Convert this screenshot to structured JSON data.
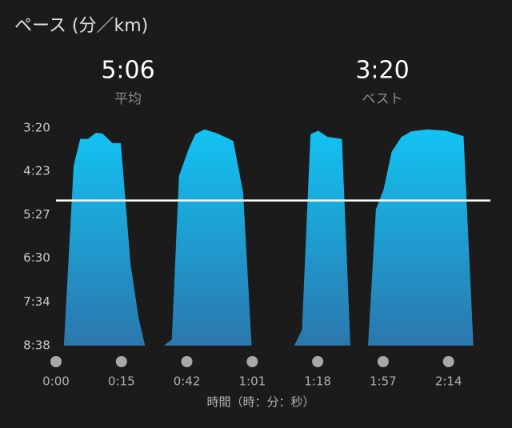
{
  "chart_data": {
    "type": "area",
    "title": "ペース (分／km)",
    "average": {
      "value": 306,
      "label": "5:06",
      "caption": "平均"
    },
    "best": {
      "label": "3:20",
      "caption": "ベスト"
    },
    "x_label": "時間（時：分：秒）",
    "x": [
      0.12,
      0.27,
      0.37,
      0.49,
      0.61,
      0.71,
      0.86,
      0.99,
      1.14,
      1.26,
      1.36,
      null,
      1.65,
      1.77,
      1.88,
      2.03,
      2.13,
      2.27,
      2.47,
      2.71,
      2.86,
      2.99,
      null,
      3.64,
      3.76,
      3.89,
      4.01,
      4.15,
      4.37,
      4.5,
      null,
      4.77,
      4.89,
      5.01,
      5.13,
      5.28,
      5.43,
      5.67,
      5.96,
      6.23,
      6.38
    ],
    "series": [
      {
        "color": "#12c3f3",
        "values": [
          518,
          255,
          216,
          216,
          207,
          208,
          222,
          222,
          399,
          476,
          518,
          null,
          518,
          509,
          270,
          230,
          209,
          202,
          208,
          219,
          294,
          518,
          null,
          518,
          495,
          209,
          204,
          213,
          216,
          518,
          null,
          518,
          319,
          289,
          235,
          213,
          205,
          202,
          204,
          212,
          518
        ]
      }
    ],
    "xlim": [
      0,
      6.64
    ],
    "xticks": [
      {
        "value": 0,
        "label": "0:00"
      },
      {
        "value": 1,
        "label": "0:15"
      },
      {
        "value": 2,
        "label": "0:42"
      },
      {
        "value": 3,
        "label": "1:01"
      },
      {
        "value": 4,
        "label": "1:18"
      },
      {
        "value": 5,
        "label": "1:57"
      },
      {
        "value": 6,
        "label": "2:14"
      }
    ],
    "ylim": [
      518,
      200
    ],
    "yticks": [
      {
        "value": 200,
        "label": "3:20"
      },
      {
        "value": 263,
        "label": "4:23"
      },
      {
        "value": 327,
        "label": "5:27"
      },
      {
        "value": 390,
        "label": "6:30"
      },
      {
        "value": 454,
        "label": "7:34"
      },
      {
        "value": 518,
        "label": "8:38"
      }
    ]
  }
}
